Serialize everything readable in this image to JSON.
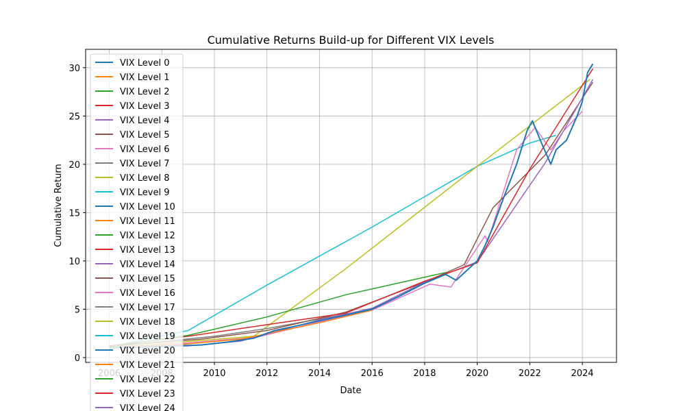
{
  "chart_data": {
    "type": "line",
    "title": "Cumulative Returns Build-up for Different VIX Levels",
    "xlabel": "Date",
    "ylabel": "Cumulative Return",
    "xlim": [
      2005.1,
      2025.3
    ],
    "ylim": [
      -0.5,
      31.9
    ],
    "x_ticks": [
      2006,
      2008,
      2010,
      2012,
      2014,
      2016,
      2018,
      2020,
      2022,
      2024
    ],
    "y_ticks": [
      0,
      5,
      10,
      15,
      20,
      25,
      30
    ],
    "grid": true,
    "legend_placement": "upper-left",
    "series": [
      {
        "name": "VIX Level 0",
        "color": "#1f77b4",
        "points": [
          [
            2006.0,
            1.0
          ],
          [
            2007.0,
            1.05
          ],
          [
            2008.0,
            1.15
          ],
          [
            2009.5,
            1.3
          ],
          [
            2010.5,
            1.6
          ],
          [
            2011.5,
            2.0
          ],
          [
            2012.3,
            2.8
          ],
          [
            2013.0,
            3.2
          ],
          [
            2014.0,
            3.8
          ],
          [
            2015.0,
            4.4
          ],
          [
            2016.0,
            5.0
          ],
          [
            2017.0,
            6.3
          ],
          [
            2018.0,
            7.7
          ],
          [
            2018.8,
            8.6
          ],
          [
            2019.2,
            8.0
          ],
          [
            2019.6,
            9.0
          ],
          [
            2020.0,
            10.0
          ],
          [
            2020.3,
            11.6
          ],
          [
            2020.6,
            13.5
          ],
          [
            2021.0,
            16.5
          ],
          [
            2021.5,
            20.0
          ],
          [
            2021.9,
            23.5
          ],
          [
            2022.1,
            24.5
          ],
          [
            2022.4,
            22.5
          ],
          [
            2022.8,
            20.0
          ],
          [
            2023.0,
            21.5
          ],
          [
            2023.4,
            22.5
          ],
          [
            2023.8,
            25.0
          ],
          [
            2024.0,
            26.5
          ],
          [
            2024.2,
            29.5
          ],
          [
            2024.4,
            30.4
          ]
        ]
      },
      {
        "name": "VIX Level 1",
        "color": "#ff7f0e",
        "points": [
          [
            2006.0,
            1.0
          ],
          [
            2008.5,
            1.3
          ],
          [
            2011.0,
            1.9
          ],
          [
            2014.0,
            3.6
          ],
          [
            2016.0,
            4.9
          ]
        ]
      },
      {
        "name": "VIX Level 2",
        "color": "#2ca02c",
        "points": [
          [
            2006.0,
            1.1
          ],
          [
            2009.0,
            2.3
          ],
          [
            2012.0,
            4.2
          ],
          [
            2015.0,
            6.5
          ],
          [
            2018.8,
            8.8
          ]
        ]
      },
      {
        "name": "VIX Level 3",
        "color": "#d62728",
        "points": [
          [
            2006.0,
            1.2
          ],
          [
            2009.0,
            2.2
          ],
          [
            2012.0,
            3.4
          ],
          [
            2015.0,
            4.6
          ],
          [
            2018.0,
            7.9
          ],
          [
            2020.0,
            9.8
          ],
          [
            2022.0,
            19.5
          ],
          [
            2024.4,
            29.9
          ]
        ]
      },
      {
        "name": "VIX Level 4",
        "color": "#9467bd",
        "points": [
          [
            2006.0,
            1.0
          ],
          [
            2009.0,
            1.2
          ],
          [
            2011.0,
            1.7
          ],
          [
            2014.0,
            3.9
          ],
          [
            2016.0,
            5.1
          ],
          [
            2018.0,
            7.8
          ],
          [
            2020.0,
            9.9
          ],
          [
            2022.6,
            20.2
          ],
          [
            2024.4,
            28.8
          ]
        ]
      },
      {
        "name": "VIX Level 5",
        "color": "#8c564b",
        "points": [
          [
            2006.0,
            1.2
          ],
          [
            2009.5,
            1.9
          ],
          [
            2012.0,
            2.8
          ],
          [
            2015.0,
            4.7
          ],
          [
            2018.0,
            7.8
          ],
          [
            2019.5,
            9.6
          ],
          [
            2020.6,
            15.5
          ],
          [
            2022.6,
            21.0
          ],
          [
            2024.4,
            28.5
          ]
        ]
      },
      {
        "name": "VIX Level 6",
        "color": "#e377c2",
        "points": [
          [
            2006.0,
            1.0
          ],
          [
            2009.0,
            1.5
          ],
          [
            2011.6,
            2.1
          ],
          [
            2014.0,
            3.7
          ],
          [
            2016.0,
            4.9
          ],
          [
            2018.2,
            7.6
          ],
          [
            2019.0,
            7.3
          ],
          [
            2020.3,
            12.6
          ],
          [
            2020.4,
            12.0
          ],
          [
            2021.5,
            21.5
          ],
          [
            2022.2,
            23.8
          ],
          [
            2022.8,
            21.5
          ],
          [
            2023.3,
            23.5
          ],
          [
            2024.0,
            25.5
          ]
        ]
      },
      {
        "name": "VIX Level 7",
        "color": "#7f7f7f",
        "points": [
          [
            2006.0,
            1.1
          ],
          [
            2010.0,
            2.2
          ],
          [
            2012.0,
            3.0
          ],
          [
            2015.0,
            4.5
          ]
        ]
      },
      {
        "name": "VIX Level 8",
        "color": "#bcbd22",
        "points": [
          [
            2006.0,
            1.0
          ],
          [
            2011.5,
            2.2
          ],
          [
            2012.0,
            3.2
          ],
          [
            2015.0,
            9.2
          ],
          [
            2020.0,
            19.8
          ],
          [
            2024.3,
            28.8
          ]
        ]
      },
      {
        "name": "VIX Level 9",
        "color": "#17becf",
        "points": [
          [
            2006.0,
            1.1
          ],
          [
            2009.0,
            2.8
          ],
          [
            2012.0,
            7.5
          ],
          [
            2016.0,
            13.5
          ],
          [
            2020.0,
            19.8
          ],
          [
            2022.0,
            22.2
          ],
          [
            2023.0,
            23.0
          ]
        ]
      },
      {
        "name": "VIX Level 10",
        "color": "#1f77b4",
        "points": []
      },
      {
        "name": "VIX Level 11",
        "color": "#ff7f0e",
        "points": []
      },
      {
        "name": "VIX Level 12",
        "color": "#2ca02c",
        "points": []
      },
      {
        "name": "VIX Level 13",
        "color": "#d62728",
        "points": []
      },
      {
        "name": "VIX Level 14",
        "color": "#9467bd",
        "points": []
      },
      {
        "name": "VIX Level 15",
        "color": "#8c564b",
        "points": []
      },
      {
        "name": "VIX Level 16",
        "color": "#e377c2",
        "points": []
      },
      {
        "name": "VIX Level 17",
        "color": "#7f7f7f",
        "points": []
      },
      {
        "name": "VIX Level 18",
        "color": "#bcbd22",
        "points": []
      },
      {
        "name": "VIX Level 19",
        "color": "#17becf",
        "points": []
      },
      {
        "name": "VIX Level 20",
        "color": "#1f77b4",
        "points": []
      },
      {
        "name": "VIX Level 21",
        "color": "#ff7f0e",
        "points": []
      },
      {
        "name": "VIX Level 22",
        "color": "#2ca02c",
        "points": []
      },
      {
        "name": "VIX Level 23",
        "color": "#d62728",
        "points": []
      },
      {
        "name": "VIX Level 24",
        "color": "#9467bd",
        "points": []
      }
    ]
  }
}
